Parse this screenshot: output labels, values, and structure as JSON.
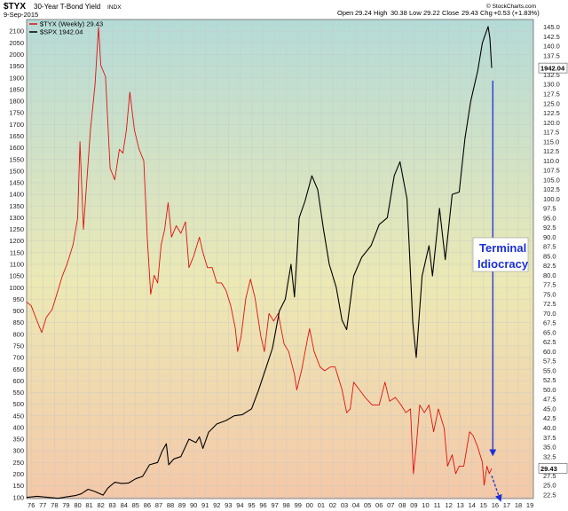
{
  "header": {
    "symbol": "$TYX",
    "description": "30-Year T-Bond Yield",
    "exchange": "INDX",
    "date": "9-Sep-2015",
    "open_label": "Open",
    "open": "29.24",
    "high_label": "High",
    "high": "30.38",
    "low_label": "Low",
    "low": "29.22",
    "close_label": "Close",
    "close": "29.43",
    "chg_label": "Chg",
    "chg": "+0.53 (+1.83%)",
    "watermark": "© StockCharts.com",
    "legend_tyx": "$TYX (Weekly) 29.43",
    "legend_spx": "$SPX 1942.04"
  },
  "colors": {
    "tyx_line": "#e01010",
    "spx_line": "#000000",
    "annotation": "#1a2fd6",
    "bg_top": "#b4dbd8",
    "bg_mid": "#ece9b4",
    "bg_bottom": "#f4c8a8",
    "label_box_bg": "#ffffff"
  },
  "annotation": {
    "line1": "Terminal",
    "line2": "Idiocracy"
  },
  "chart_data": {
    "type": "line",
    "x_range": [
      1975.6,
      2019.3
    ],
    "x_tick_labels": [
      "76",
      "77",
      "78",
      "79",
      "80",
      "81",
      "82",
      "83",
      "84",
      "85",
      "86",
      "87",
      "88",
      "89",
      "90",
      "91",
      "92",
      "93",
      "94",
      "95",
      "96",
      "97",
      "98",
      "99",
      "00",
      "01",
      "02",
      "03",
      "04",
      "05",
      "06",
      "07",
      "08",
      "09",
      "10",
      "11",
      "12",
      "13",
      "14",
      "15",
      "16",
      "17",
      "18",
      "19"
    ],
    "left_axis": {
      "series": "$SPX",
      "range": [
        95,
        2150
      ],
      "ticks": [
        "100",
        "150",
        "200",
        "250",
        "300",
        "350",
        "400",
        "450",
        "500",
        "550",
        "600",
        "650",
        "700",
        "750",
        "800",
        "850",
        "900",
        "950",
        "1000",
        "1050",
        "1100",
        "1150",
        "1200",
        "1250",
        "1300",
        "1350",
        "1400",
        "1450",
        "1500",
        "1550",
        "1600",
        "1650",
        "1700",
        "1750",
        "1800",
        "1850",
        "1900",
        "1950",
        "2000",
        "2050",
        "2100"
      ]
    },
    "right_axis": {
      "series": "$TYX",
      "range": [
        21.5,
        147.0
      ],
      "ticks": [
        "22.5",
        "25.0",
        "27.5",
        "30.0",
        "32.5",
        "35.0",
        "37.5",
        "40.0",
        "42.5",
        "45.0",
        "47.5",
        "50.0",
        "52.5",
        "55.0",
        "57.5",
        "60.0",
        "62.5",
        "65.0",
        "67.5",
        "70.0",
        "72.5",
        "75.0",
        "77.5",
        "80.0",
        "82.5",
        "85.0",
        "87.5",
        "90.0",
        "92.5",
        "95.0",
        "97.5",
        "100.0",
        "102.5",
        "105.0",
        "107.5",
        "110.0",
        "112.5",
        "115.0",
        "117.5",
        "120.0",
        "122.5",
        "125.0",
        "127.5",
        "130.0",
        "132.5",
        "135.0",
        "137.5",
        "140.0",
        "142.5",
        "145.0"
      ],
      "last_value_label": "29.43"
    },
    "left_last_value_label": "1942.04",
    "series": [
      {
        "name": "$TYX (Weekly) 29.43",
        "axis": "right",
        "x": [
          1975.6,
          1976.0,
          1976.5,
          1976.9,
          1977.3,
          1977.8,
          1978.2,
          1978.7,
          1979.1,
          1979.6,
          1980.0,
          1980.2,
          1980.5,
          1980.8,
          1981.1,
          1981.5,
          1981.8,
          1982.0,
          1982.4,
          1982.8,
          1983.2,
          1983.6,
          1983.9,
          1984.2,
          1984.5,
          1984.9,
          1985.3,
          1985.7,
          1986.0,
          1986.3,
          1986.6,
          1986.9,
          1987.2,
          1987.5,
          1987.8,
          1988.1,
          1988.5,
          1988.9,
          1989.3,
          1989.6,
          1990.0,
          1990.5,
          1990.8,
          1991.2,
          1991.6,
          1992.0,
          1992.4,
          1992.8,
          1993.2,
          1993.6,
          1993.8,
          1994.1,
          1994.5,
          1994.9,
          1995.3,
          1995.8,
          1996.1,
          1996.5,
          1996.9,
          1997.3,
          1997.8,
          1998.2,
          1998.7,
          1998.9,
          1999.3,
          1999.8,
          2000.0,
          2000.4,
          2000.9,
          2001.3,
          2001.8,
          2002.2,
          2002.8,
          2003.2,
          2003.5,
          2003.8,
          2004.3,
          2004.8,
          2005.4,
          2006.0,
          2006.5,
          2006.9,
          2007.4,
          2007.9,
          2008.3,
          2008.7,
          2008.95,
          2009.2,
          2009.5,
          2009.9,
          2010.3,
          2010.7,
          2011.1,
          2011.6,
          2011.9,
          2012.3,
          2012.6,
          2012.9,
          2013.3,
          2013.8,
          2014.1,
          2014.5,
          2014.9,
          2015.05,
          2015.3,
          2015.5,
          2015.7
        ],
        "y": [
          73.0,
          72.0,
          68.0,
          65.0,
          69.0,
          71.0,
          75.0,
          80.0,
          83.0,
          88.0,
          95.0,
          115.0,
          92.0,
          105.0,
          118.0,
          130.0,
          145.0,
          135.0,
          132.0,
          108.0,
          105.0,
          113.0,
          112.0,
          118.0,
          128.0,
          118.0,
          113.0,
          110.0,
          90.0,
          75.0,
          80.0,
          78.0,
          88.0,
          92.0,
          99.0,
          90.0,
          93.0,
          91.0,
          94.0,
          82.0,
          85.0,
          90.0,
          86.0,
          82.0,
          82.0,
          78.0,
          78.0,
          76.0,
          72.0,
          66.0,
          60.0,
          64.0,
          74.0,
          79.0,
          74.0,
          64.0,
          60.0,
          70.0,
          68.0,
          70.0,
          62.0,
          60.0,
          54.0,
          50.0,
          55.0,
          63.0,
          66.0,
          60.0,
          56.0,
          55.0,
          56.0,
          56.0,
          50.0,
          44.0,
          45.0,
          52.0,
          50.0,
          48.0,
          46.0,
          46.0,
          52.0,
          47.0,
          48.0,
          46.0,
          44.0,
          45.0,
          28.0,
          35.0,
          46.0,
          44.0,
          46.0,
          39.0,
          45.0,
          40.0,
          30.0,
          33.0,
          28.0,
          30.0,
          30.0,
          39.0,
          38.0,
          35.0,
          31.0,
          25.0,
          30.0,
          28.0,
          29.43
        ]
      },
      {
        "name": "$SPX 1942.04",
        "axis": "left",
        "x": [
          1975.6,
          1976.5,
          1977.5,
          1978.3,
          1979.0,
          1979.8,
          1980.3,
          1980.9,
          1981.5,
          1982.2,
          1982.6,
          1983.2,
          1983.8,
          1984.4,
          1985.0,
          1985.6,
          1986.2,
          1986.9,
          1987.3,
          1987.65,
          1987.85,
          1988.3,
          1988.9,
          1989.6,
          1990.2,
          1990.5,
          1990.8,
          1991.3,
          1992.0,
          1992.8,
          1993.5,
          1994.2,
          1995.0,
          1995.6,
          1996.2,
          1996.8,
          1997.4,
          1997.9,
          1998.4,
          1998.7,
          1999.1,
          1999.6,
          2000.2,
          2000.7,
          2001.2,
          2001.7,
          2002.3,
          2002.8,
          2003.2,
          2003.8,
          2004.5,
          2005.3,
          2006.0,
          2006.7,
          2007.3,
          2007.8,
          2008.4,
          2008.9,
          2009.2,
          2009.7,
          2010.3,
          2010.6,
          2011.2,
          2011.7,
          2012.3,
          2012.9,
          2013.4,
          2013.9,
          2014.5,
          2014.9,
          2015.4,
          2015.55,
          2015.7
        ],
        "y": [
          100,
          105,
          100,
          96,
          102,
          108,
          115,
          135,
          125,
          110,
          140,
          165,
          160,
          162,
          180,
          190,
          240,
          250,
          300,
          330,
          240,
          265,
          275,
          350,
          335,
          360,
          310,
          380,
          415,
          430,
          450,
          455,
          480,
          560,
          650,
          740,
          900,
          950,
          1100,
          960,
          1300,
          1370,
          1480,
          1420,
          1250,
          1100,
          1000,
          860,
          820,
          1050,
          1130,
          1180,
          1270,
          1300,
          1480,
          1540,
          1380,
          850,
          700,
          1050,
          1180,
          1050,
          1340,
          1120,
          1400,
          1410,
          1640,
          1800,
          1930,
          2050,
          2120,
          2070,
          1942.04
        ]
      }
    ],
    "projection": {
      "axis": "right",
      "x": [
        2015.7,
        2016.4
      ],
      "y": [
        27.5,
        21.5
      ]
    },
    "annotation_arrow": {
      "axis": "right",
      "x": 2015.8,
      "y_from": 131.0,
      "y_to": 33.5
    }
  }
}
